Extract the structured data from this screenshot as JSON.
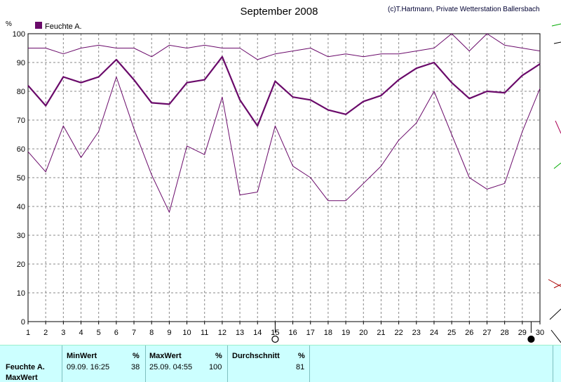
{
  "header": {
    "title": "September 2008",
    "copyright": "(c)T.Hartmann, Private Wetterstation Ballersbach"
  },
  "colors": {
    "series": "#6a0a6a",
    "grid": "#888888",
    "footer_bg": "#ccffff"
  },
  "chart_data": {
    "type": "line",
    "title": "September 2008",
    "ylabel": "%",
    "ylim": [
      0,
      100
    ],
    "yticks": [
      0,
      10,
      20,
      30,
      40,
      50,
      60,
      70,
      80,
      90,
      100
    ],
    "x": [
      1,
      2,
      3,
      4,
      5,
      6,
      7,
      8,
      9,
      10,
      11,
      12,
      13,
      14,
      15,
      16,
      17,
      18,
      19,
      20,
      21,
      22,
      23,
      24,
      25,
      26,
      27,
      28,
      29,
      30
    ],
    "grid": true,
    "legend": {
      "position": "top-left",
      "entries": [
        "Feuchte A."
      ]
    },
    "series": [
      {
        "name": "Feuchte A.",
        "role": "max",
        "values": [
          95,
          95,
          93,
          95,
          96,
          95,
          95,
          92,
          96,
          95,
          96,
          95,
          95,
          91,
          93,
          94,
          95,
          92,
          93,
          92,
          93,
          93,
          94,
          95,
          100,
          94,
          100,
          96,
          95,
          94
        ]
      },
      {
        "name": "Feuchte A.",
        "role": "average",
        "values": [
          82,
          75,
          85,
          83,
          85,
          91,
          84,
          76,
          75.5,
          83,
          84,
          92,
          77,
          68,
          83.5,
          78,
          77,
          73.5,
          72,
          76.5,
          78.5,
          84,
          88,
          90,
          83,
          77.5,
          80,
          79.5,
          85.5,
          89.5
        ]
      },
      {
        "name": "Feuchte A.",
        "role": "min",
        "values": [
          59,
          52,
          68,
          57,
          66,
          85,
          67,
          51,
          38,
          61,
          58,
          78,
          44,
          45,
          68,
          54,
          50,
          42,
          42,
          48,
          54,
          63,
          69,
          80,
          65,
          50,
          46,
          48,
          66,
          81
        ]
      }
    ],
    "markers": [
      {
        "x": 15,
        "type": "open-circle"
      },
      {
        "x": 29.5,
        "type": "filled-circle"
      }
    ]
  },
  "footer": {
    "row_label": "Feuchte A.",
    "row_label2": "MaxWert",
    "min": {
      "header": "MinWert",
      "unit": "%",
      "timestamp": "09.09.  16:25",
      "value": "38"
    },
    "max": {
      "header": "MaxWert",
      "unit": "%",
      "timestamp": "25.09.  04:55",
      "value": "100"
    },
    "avg": {
      "header": "Durchschnitt",
      "unit": "%",
      "value": "81"
    }
  }
}
